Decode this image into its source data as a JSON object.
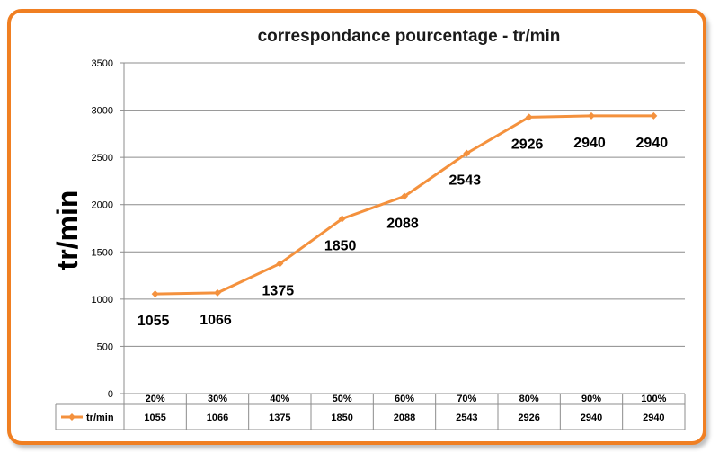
{
  "chart_data": {
    "type": "line",
    "title": "correspondance pourcentage - tr/min",
    "xlabel": "",
    "ylabel": "tr/min",
    "categories": [
      "20%",
      "30%",
      "40%",
      "50%",
      "60%",
      "70%",
      "80%",
      "90%",
      "100%"
    ],
    "series": [
      {
        "name": "tr/min",
        "values": [
          1055,
          1066,
          1375,
          1850,
          2088,
          2543,
          2926,
          2940,
          2940
        ]
      }
    ],
    "ylim": [
      0,
      3500
    ],
    "yticks": [
      0,
      500,
      1000,
      1500,
      2000,
      2500,
      3000,
      3500
    ],
    "grid": true,
    "legend": "data-table-left",
    "data_table": true,
    "color": "#f4913d"
  }
}
